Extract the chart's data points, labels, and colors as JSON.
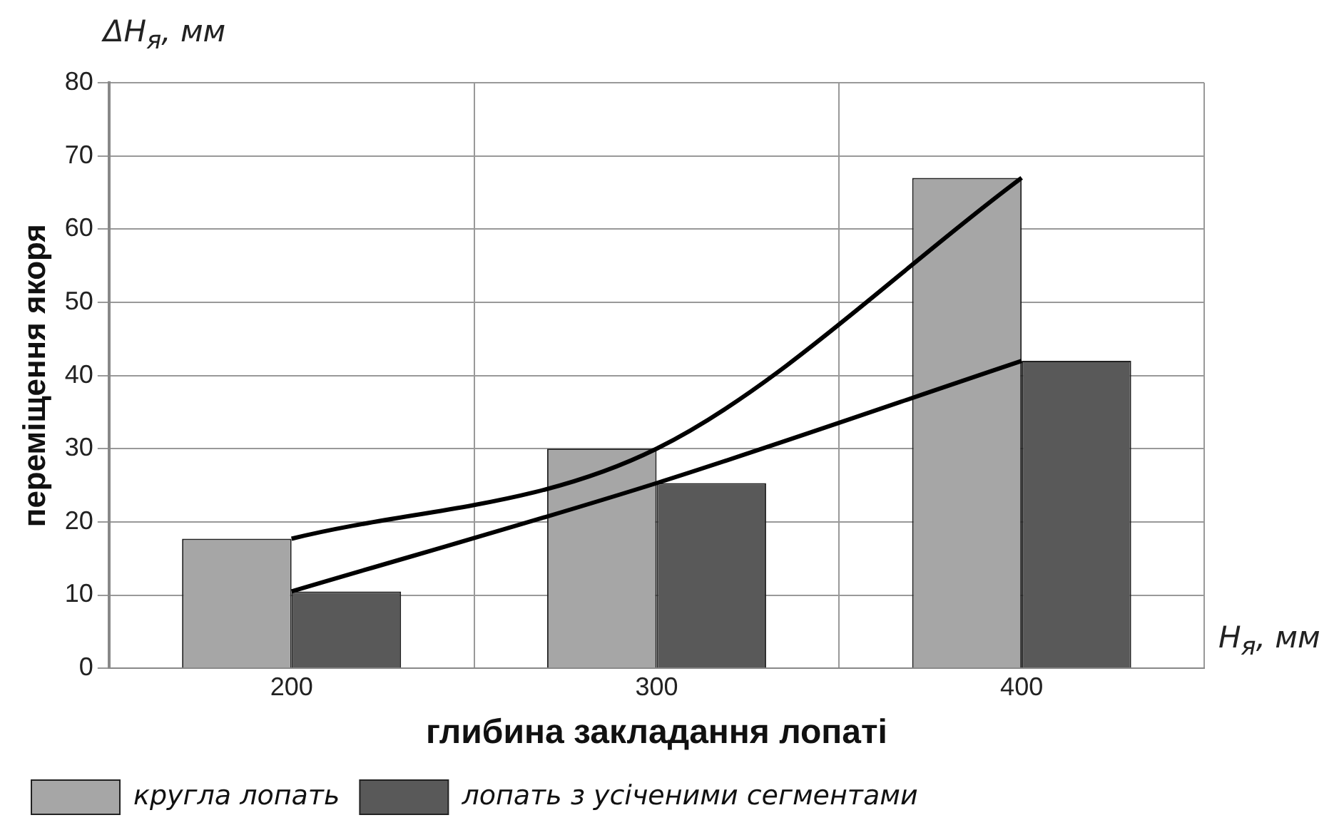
{
  "chart_data": {
    "type": "bar",
    "xlabel": "глибина закладання лопаті",
    "ylabel": "переміщення якоря",
    "annotations": [
      "ΔH$_{я}$, мм",
      "H$_{я}$, мм"
    ],
    "categories": [
      "200",
      "300",
      "400"
    ],
    "series": [
      {
        "name": "кругла лопать",
        "color": "#a6a6a6",
        "values": [
          17.7,
          30,
          67
        ]
      },
      {
        "name": "лопать з усіченими сегментами",
        "color": "#595959",
        "values": [
          10.5,
          25.3,
          42
        ]
      },
      {
        "type": "line",
        "color": "#000000",
        "values": [
          17.7,
          30,
          67
        ]
      },
      {
        "type": "line",
        "color": "#000000",
        "values": [
          10.5,
          25.3,
          42
        ]
      }
    ],
    "ylim": [
      0,
      80
    ],
    "yticks": [
      0,
      10,
      20,
      30,
      40,
      50,
      60,
      70,
      80
    ],
    "grid": true,
    "legend": "bottom",
    "marker": "none"
  }
}
